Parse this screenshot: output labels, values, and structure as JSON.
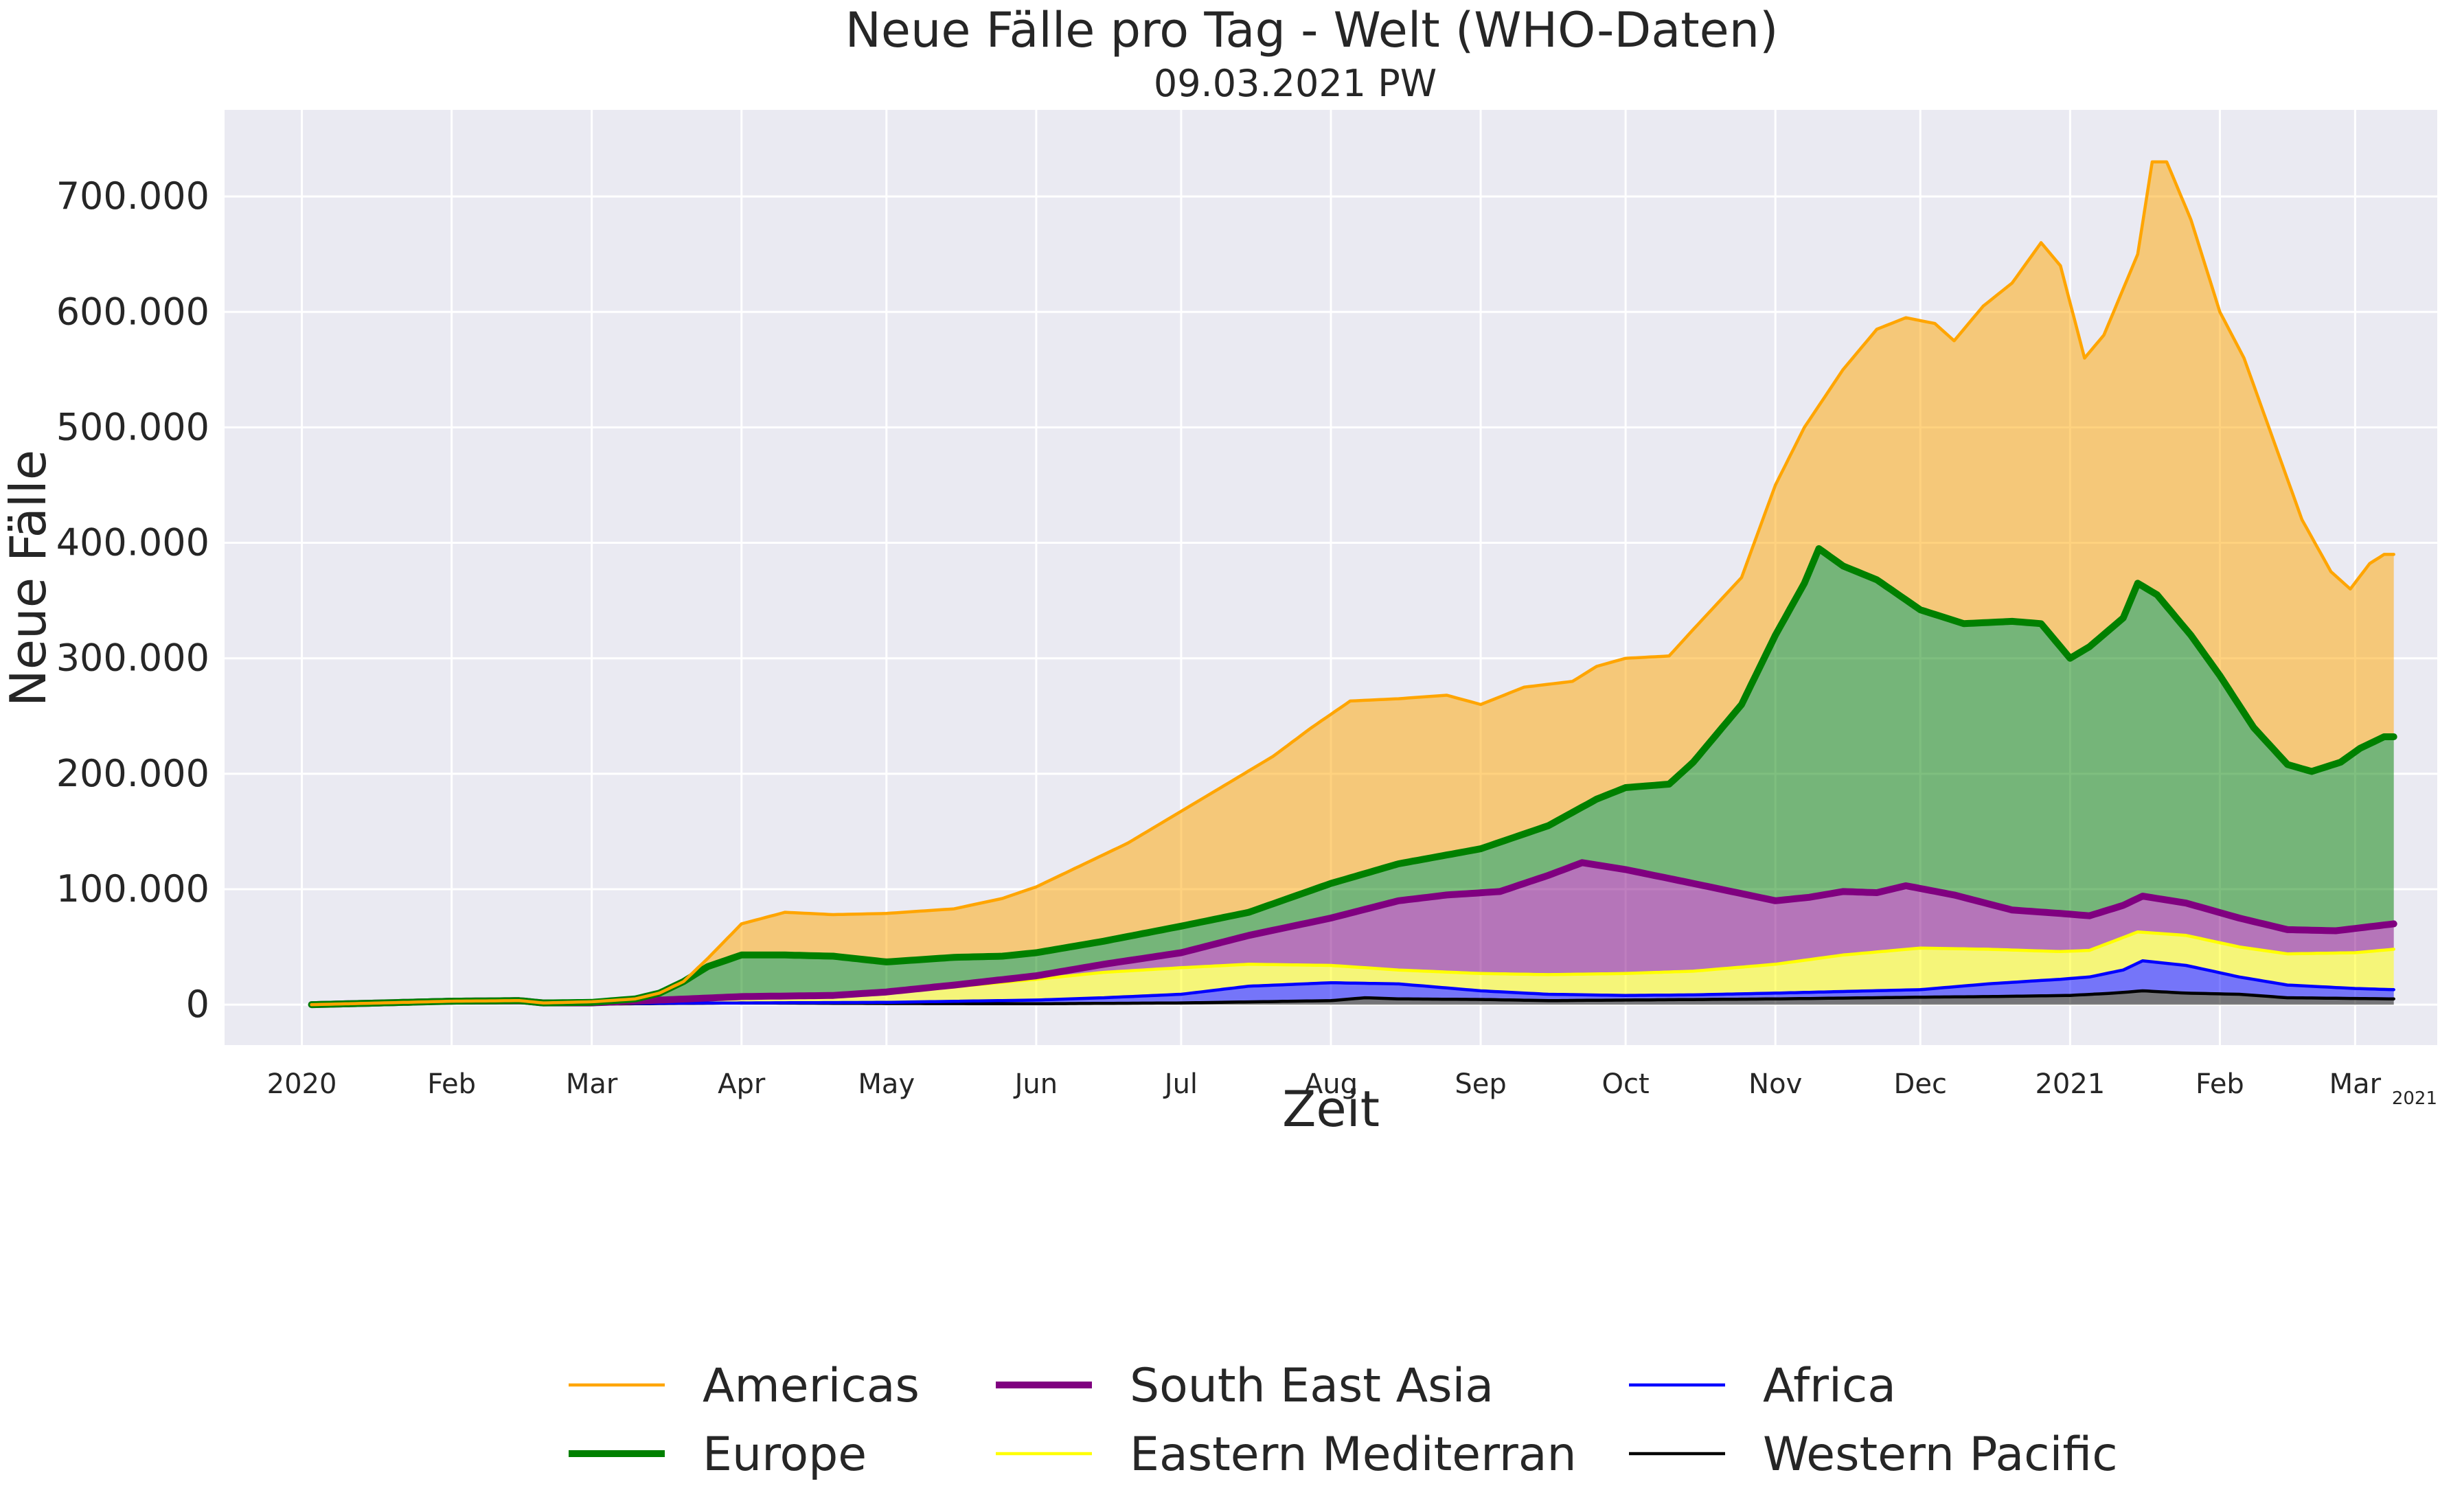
{
  "chart_data": {
    "type": "area",
    "stacked": true,
    "title": "Neue Fälle pro Tag - Welt (WHO-Daten)",
    "subtitle": "09.03.2021 PW",
    "xlabel": "Zeit",
    "ylabel": "Neue Fälle",
    "x_offset_label": "2021",
    "grid": true,
    "legend_position": "bottom",
    "ylim": [
      -35000,
      775000
    ],
    "xlim": [
      "2019-12-16",
      "2021-03-18"
    ],
    "y_ticks": [
      {
        "value": 0,
        "label": "0"
      },
      {
        "value": 100000,
        "label": "100.000"
      },
      {
        "value": 200000,
        "label": "200.000"
      },
      {
        "value": 300000,
        "label": "300.000"
      },
      {
        "value": 400000,
        "label": "400.000"
      },
      {
        "value": 500000,
        "label": "500.000"
      },
      {
        "value": 600000,
        "label": "600.000"
      },
      {
        "value": 700000,
        "label": "700.000"
      }
    ],
    "x_ticks": [
      {
        "date": "2020-01-01",
        "label": "2020"
      },
      {
        "date": "2020-02-01",
        "label": "Feb"
      },
      {
        "date": "2020-03-01",
        "label": "Mar"
      },
      {
        "date": "2020-04-01",
        "label": "Apr"
      },
      {
        "date": "2020-05-01",
        "label": "May"
      },
      {
        "date": "2020-06-01",
        "label": "Jun"
      },
      {
        "date": "2020-07-01",
        "label": "Jul"
      },
      {
        "date": "2020-08-01",
        "label": "Aug"
      },
      {
        "date": "2020-09-01",
        "label": "Sep"
      },
      {
        "date": "2020-10-01",
        "label": "Oct"
      },
      {
        "date": "2020-11-01",
        "label": "Nov"
      },
      {
        "date": "2020-12-01",
        "label": "Dec"
      },
      {
        "date": "2021-01-01",
        "label": "2021"
      },
      {
        "date": "2021-02-01",
        "label": "Feb"
      },
      {
        "date": "2021-03-01",
        "label": "Mar"
      }
    ],
    "series_note": "values are cumulative stacked totals (Western Pacific at bottom, Americas on top)",
    "series": [
      {
        "name": "Americas",
        "color": "#ffa500",
        "points": [
          [
            "2020-01-03",
            0
          ],
          [
            "2020-02-01",
            3000
          ],
          [
            "2020-02-15",
            3500
          ],
          [
            "2020-02-20",
            1500
          ],
          [
            "2020-03-01",
            2500
          ],
          [
            "2020-03-10",
            5000
          ],
          [
            "2020-03-15",
            10000
          ],
          [
            "2020-03-20",
            20000
          ],
          [
            "2020-03-25",
            40000
          ],
          [
            "2020-04-01",
            70000
          ],
          [
            "2020-04-10",
            80000
          ],
          [
            "2020-04-20",
            78000
          ],
          [
            "2020-05-01",
            79000
          ],
          [
            "2020-05-15",
            83000
          ],
          [
            "2020-05-25",
            92000
          ],
          [
            "2020-06-01",
            102000
          ],
          [
            "2020-06-10",
            120000
          ],
          [
            "2020-06-20",
            140000
          ],
          [
            "2020-06-30",
            165000
          ],
          [
            "2020-07-10",
            190000
          ],
          [
            "2020-07-20",
            215000
          ],
          [
            "2020-07-28",
            240000
          ],
          [
            "2020-08-05",
            263000
          ],
          [
            "2020-08-15",
            265000
          ],
          [
            "2020-08-25",
            268000
          ],
          [
            "2020-09-01",
            260000
          ],
          [
            "2020-09-10",
            275000
          ],
          [
            "2020-09-20",
            280000
          ],
          [
            "2020-09-25",
            293000
          ],
          [
            "2020-10-01",
            300000
          ],
          [
            "2020-10-10",
            302000
          ],
          [
            "2020-10-15",
            325000
          ],
          [
            "2020-10-25",
            370000
          ],
          [
            "2020-11-01",
            450000
          ],
          [
            "2020-11-07",
            500000
          ],
          [
            "2020-11-15",
            550000
          ],
          [
            "2020-11-22",
            585000
          ],
          [
            "2020-11-28",
            595000
          ],
          [
            "2020-12-04",
            590000
          ],
          [
            "2020-12-08",
            575000
          ],
          [
            "2020-12-14",
            605000
          ],
          [
            "2020-12-20",
            625000
          ],
          [
            "2020-12-26",
            660000
          ],
          [
            "2020-12-30",
            640000
          ],
          [
            "2021-01-04",
            560000
          ],
          [
            "2021-01-08",
            580000
          ],
          [
            "2021-01-12",
            620000
          ],
          [
            "2021-01-15",
            650000
          ],
          [
            "2021-01-18",
            730000
          ],
          [
            "2021-01-21",
            730000
          ],
          [
            "2021-01-26",
            680000
          ],
          [
            "2021-02-01",
            600000
          ],
          [
            "2021-02-06",
            560000
          ],
          [
            "2021-02-12",
            490000
          ],
          [
            "2021-02-18",
            420000
          ],
          [
            "2021-02-24",
            375000
          ],
          [
            "2021-02-28",
            360000
          ],
          [
            "2021-03-04",
            382000
          ],
          [
            "2021-03-07",
            390000
          ],
          [
            "2021-03-09",
            390000
          ]
        ]
      },
      {
        "name": "Europe",
        "color": "#008000",
        "points": [
          [
            "2020-01-03",
            0
          ],
          [
            "2020-02-01",
            3000
          ],
          [
            "2020-02-15",
            3500
          ],
          [
            "2020-02-20",
            1500
          ],
          [
            "2020-03-01",
            2000
          ],
          [
            "2020-03-10",
            5000
          ],
          [
            "2020-03-15",
            10000
          ],
          [
            "2020-03-20",
            20000
          ],
          [
            "2020-03-25",
            33000
          ],
          [
            "2020-04-01",
            43000
          ],
          [
            "2020-04-10",
            43000
          ],
          [
            "2020-04-20",
            42000
          ],
          [
            "2020-05-01",
            37000
          ],
          [
            "2020-05-15",
            41000
          ],
          [
            "2020-05-25",
            42000
          ],
          [
            "2020-06-01",
            45000
          ],
          [
            "2020-06-15",
            55000
          ],
          [
            "2020-07-01",
            68000
          ],
          [
            "2020-07-15",
            80000
          ],
          [
            "2020-08-01",
            105000
          ],
          [
            "2020-08-15",
            122000
          ],
          [
            "2020-09-01",
            135000
          ],
          [
            "2020-09-15",
            155000
          ],
          [
            "2020-09-25",
            178000
          ],
          [
            "2020-10-01",
            188000
          ],
          [
            "2020-10-10",
            191000
          ],
          [
            "2020-10-15",
            210000
          ],
          [
            "2020-10-25",
            260000
          ],
          [
            "2020-11-01",
            320000
          ],
          [
            "2020-11-07",
            365000
          ],
          [
            "2020-11-10",
            395000
          ],
          [
            "2020-11-15",
            380000
          ],
          [
            "2020-11-22",
            368000
          ],
          [
            "2020-12-01",
            342000
          ],
          [
            "2020-12-10",
            330000
          ],
          [
            "2020-12-20",
            332000
          ],
          [
            "2020-12-26",
            330000
          ],
          [
            "2021-01-01",
            300000
          ],
          [
            "2021-01-05",
            310000
          ],
          [
            "2021-01-12",
            335000
          ],
          [
            "2021-01-15",
            365000
          ],
          [
            "2021-01-19",
            355000
          ],
          [
            "2021-01-26",
            320000
          ],
          [
            "2021-02-01",
            285000
          ],
          [
            "2021-02-08",
            240000
          ],
          [
            "2021-02-15",
            208000
          ],
          [
            "2021-02-20",
            202000
          ],
          [
            "2021-02-26",
            210000
          ],
          [
            "2021-03-02",
            222000
          ],
          [
            "2021-03-07",
            232000
          ],
          [
            "2021-03-09",
            232000
          ]
        ]
      },
      {
        "name": "South East Asia",
        "color": "#800080",
        "points": [
          [
            "2020-01-03",
            0
          ],
          [
            "2020-02-01",
            3000
          ],
          [
            "2020-02-15",
            3500
          ],
          [
            "2020-02-20",
            1500
          ],
          [
            "2020-03-01",
            1500
          ],
          [
            "2020-04-01",
            7000
          ],
          [
            "2020-04-20",
            8000
          ],
          [
            "2020-05-01",
            11000
          ],
          [
            "2020-05-15",
            17000
          ],
          [
            "2020-06-01",
            25000
          ],
          [
            "2020-06-15",
            35000
          ],
          [
            "2020-07-01",
            45000
          ],
          [
            "2020-07-15",
            60000
          ],
          [
            "2020-08-01",
            75000
          ],
          [
            "2020-08-15",
            90000
          ],
          [
            "2020-08-25",
            95000
          ],
          [
            "2020-09-05",
            98000
          ],
          [
            "2020-09-15",
            112000
          ],
          [
            "2020-09-22",
            123000
          ],
          [
            "2020-10-01",
            117000
          ],
          [
            "2020-10-15",
            105000
          ],
          [
            "2020-11-01",
            90000
          ],
          [
            "2020-11-08",
            93000
          ],
          [
            "2020-11-15",
            98000
          ],
          [
            "2020-11-22",
            97000
          ],
          [
            "2020-11-28",
            103000
          ],
          [
            "2020-12-08",
            95000
          ],
          [
            "2020-12-20",
            82000
          ],
          [
            "2020-12-30",
            79000
          ],
          [
            "2021-01-05",
            77000
          ],
          [
            "2021-01-12",
            86000
          ],
          [
            "2021-01-16",
            94000
          ],
          [
            "2021-01-25",
            88000
          ],
          [
            "2021-02-05",
            75000
          ],
          [
            "2021-02-15",
            65000
          ],
          [
            "2021-02-25",
            64000
          ],
          [
            "2021-03-09",
            70000
          ]
        ]
      },
      {
        "name": "Eastern Mediterran",
        "color": "#ffff00",
        "points": [
          [
            "2020-01-03",
            0
          ],
          [
            "2020-02-01",
            3000
          ],
          [
            "2020-02-15",
            3500
          ],
          [
            "2020-02-20",
            1500
          ],
          [
            "2020-03-01",
            1500
          ],
          [
            "2020-04-01",
            6000
          ],
          [
            "2020-05-01",
            10000
          ],
          [
            "2020-06-01",
            22000
          ],
          [
            "2020-06-15",
            28000
          ],
          [
            "2020-07-01",
            32000
          ],
          [
            "2020-07-15",
            35000
          ],
          [
            "2020-08-01",
            34000
          ],
          [
            "2020-08-15",
            30000
          ],
          [
            "2020-09-01",
            27000
          ],
          [
            "2020-09-15",
            26000
          ],
          [
            "2020-10-01",
            27000
          ],
          [
            "2020-10-15",
            29000
          ],
          [
            "2020-11-01",
            35000
          ],
          [
            "2020-11-15",
            43000
          ],
          [
            "2020-12-01",
            49000
          ],
          [
            "2020-12-15",
            48000
          ],
          [
            "2020-12-30",
            46000
          ],
          [
            "2021-01-05",
            47000
          ],
          [
            "2021-01-15",
            63000
          ],
          [
            "2021-01-25",
            60000
          ],
          [
            "2021-02-05",
            50000
          ],
          [
            "2021-02-15",
            44000
          ],
          [
            "2021-03-01",
            45000
          ],
          [
            "2021-03-09",
            48000
          ]
        ]
      },
      {
        "name": "Africa",
        "color": "#0000ff",
        "points": [
          [
            "2020-01-03",
            0
          ],
          [
            "2020-02-01",
            3000
          ],
          [
            "2020-02-15",
            3500
          ],
          [
            "2020-02-20",
            1500
          ],
          [
            "2020-03-01",
            1000
          ],
          [
            "2020-04-01",
            1500
          ],
          [
            "2020-05-01",
            2000
          ],
          [
            "2020-06-01",
            4000
          ],
          [
            "2020-06-15",
            6000
          ],
          [
            "2020-07-01",
            9000
          ],
          [
            "2020-07-15",
            16000
          ],
          [
            "2020-08-01",
            19000
          ],
          [
            "2020-08-15",
            18000
          ],
          [
            "2020-09-01",
            12000
          ],
          [
            "2020-09-15",
            9000
          ],
          [
            "2020-10-01",
            8000
          ],
          [
            "2020-10-15",
            8500
          ],
          [
            "2020-11-01",
            10000
          ],
          [
            "2020-12-01",
            13000
          ],
          [
            "2020-12-15",
            18000
          ],
          [
            "2020-12-30",
            22000
          ],
          [
            "2021-01-05",
            24000
          ],
          [
            "2021-01-12",
            30000
          ],
          [
            "2021-01-16",
            38000
          ],
          [
            "2021-01-25",
            34000
          ],
          [
            "2021-02-05",
            24000
          ],
          [
            "2021-02-15",
            17000
          ],
          [
            "2021-03-01",
            14000
          ],
          [
            "2021-03-09",
            13000
          ]
        ]
      },
      {
        "name": "Western Pacific",
        "color": "#000000",
        "points": [
          [
            "2020-01-03",
            0
          ],
          [
            "2020-02-01",
            3000
          ],
          [
            "2020-02-15",
            3500
          ],
          [
            "2020-02-20",
            1500
          ],
          [
            "2020-03-01",
            500
          ],
          [
            "2020-04-01",
            1500
          ],
          [
            "2020-05-01",
            1000
          ],
          [
            "2020-06-01",
            800
          ],
          [
            "2020-07-01",
            1500
          ],
          [
            "2020-08-01",
            3500
          ],
          [
            "2020-08-08",
            6000
          ],
          [
            "2020-08-15",
            5000
          ],
          [
            "2020-09-01",
            4500
          ],
          [
            "2020-09-15",
            3500
          ],
          [
            "2020-10-01",
            4000
          ],
          [
            "2020-11-01",
            5000
          ],
          [
            "2020-12-01",
            6500
          ],
          [
            "2020-12-15",
            7000
          ],
          [
            "2021-01-01",
            8000
          ],
          [
            "2021-01-10",
            10000
          ],
          [
            "2021-01-16",
            12000
          ],
          [
            "2021-01-25",
            10000
          ],
          [
            "2021-02-05",
            9000
          ],
          [
            "2021-02-15",
            6000
          ],
          [
            "2021-03-09",
            5000
          ]
        ]
      }
    ],
    "legend_order": [
      "Americas",
      "Europe",
      "South East Asia",
      "Eastern Mediterran",
      "Africa",
      "Western Pacific"
    ],
    "line_widths": {
      "Americas": "thin",
      "Europe": "thick",
      "South East Asia": "thick",
      "Eastern Mediterran": "thin",
      "Africa": "thin",
      "Western Pacific": "thin"
    },
    "fill_alpha": 0.5,
    "background_color": "#eaeaf2"
  }
}
